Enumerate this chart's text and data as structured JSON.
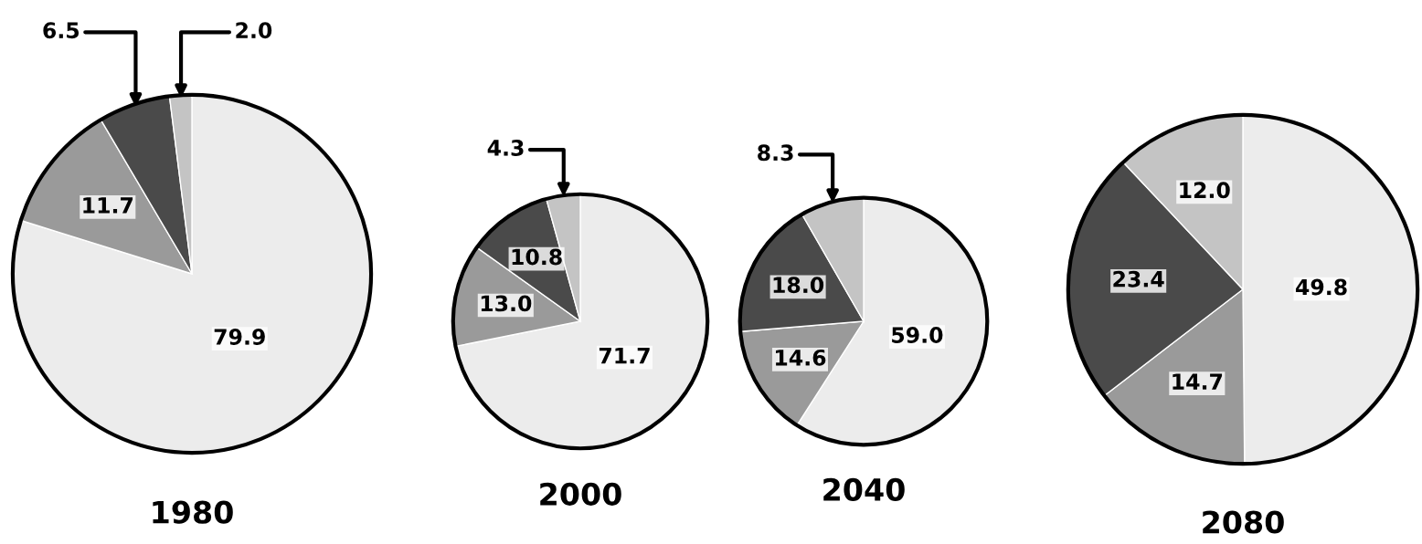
{
  "chart_data": [
    {
      "type": "pie",
      "title": "1980",
      "categories": [
        null,
        null,
        null,
        null
      ],
      "values": [
        79.9,
        11.7,
        6.5,
        2.0
      ],
      "value_labels": [
        "79.9",
        "11.7",
        "6.5",
        "2.0"
      ],
      "colors": [
        "#ececec",
        "#9a9a9a",
        "#4a4a4a",
        "#c4c4c4"
      ],
      "data_labels": true
    },
    {
      "type": "pie",
      "title": "2000",
      "categories": [
        null,
        null,
        null,
        null
      ],
      "values": [
        71.7,
        13.0,
        10.8,
        4.3
      ],
      "value_labels": [
        "71.7",
        "13.0",
        "10.8",
        "4.3"
      ],
      "colors": [
        "#ececec",
        "#9a9a9a",
        "#4a4a4a",
        "#c4c4c4"
      ],
      "data_labels": true
    },
    {
      "type": "pie",
      "title": "2040",
      "categories": [
        null,
        null,
        null,
        null
      ],
      "values": [
        59.0,
        14.6,
        18.0,
        8.3
      ],
      "value_labels": [
        "59.0",
        "14.6",
        "18.0",
        "8.3"
      ],
      "colors": [
        "#ececec",
        "#9a9a9a",
        "#4a4a4a",
        "#c4c4c4"
      ],
      "data_labels": true
    },
    {
      "type": "pie",
      "title": "2080",
      "categories": [
        null,
        null,
        null,
        null
      ],
      "values": [
        49.8,
        14.7,
        23.4,
        12.0
      ],
      "value_labels": [
        "49.8",
        "14.7",
        "23.4",
        "12.0"
      ],
      "colors": [
        "#ececec",
        "#9a9a9a",
        "#4a4a4a",
        "#c4c4c4"
      ],
      "data_labels": true
    }
  ]
}
